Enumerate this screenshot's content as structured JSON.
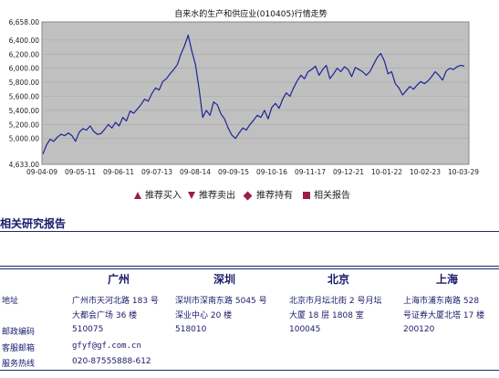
{
  "chart_data": {
    "type": "line",
    "title": "自来水的生产和供应业(010405)行情走势",
    "ylim": [
      4633,
      6658
    ],
    "y_ticks": [
      "4,633.00",
      "5,000.00",
      "5,200.00",
      "5,400.00",
      "5,600.00",
      "5,800.00",
      "6,000.00",
      "6,200.00",
      "6,400.00",
      "6,658.00"
    ],
    "x_ticks": [
      "09-04-09",
      "09-05-11",
      "09-06-11",
      "09-07-13",
      "09-08-14",
      "09-09-15",
      "09-10-16",
      "09-11-17",
      "09-12-21",
      "10-01-22",
      "10-02-23",
      "10-03-29"
    ],
    "line_color": "#1c2497",
    "series": [
      {
        "values": [
          4780,
          4910,
          4990,
          4960,
          5020,
          5060,
          5040,
          5080,
          5040,
          4960,
          5090,
          5140,
          5120,
          5180,
          5100,
          5060,
          5070,
          5130,
          5200,
          5150,
          5230,
          5180,
          5300,
          5250,
          5390,
          5360,
          5420,
          5480,
          5560,
          5530,
          5640,
          5720,
          5690,
          5810,
          5850,
          5920,
          5980,
          6050,
          6200,
          6320,
          6470,
          6240,
          6050,
          5700,
          5300,
          5400,
          5330,
          5520,
          5480,
          5350,
          5280,
          5150,
          5050,
          5000,
          5080,
          5150,
          5120,
          5200,
          5260,
          5330,
          5300,
          5400,
          5280,
          5440,
          5500,
          5430,
          5560,
          5650,
          5600,
          5720,
          5820,
          5900,
          5850,
          5950,
          5980,
          6030,
          5900,
          5980,
          6040,
          5850,
          5920,
          6000,
          5950,
          6020,
          5980,
          5880,
          6010,
          5980,
          5950,
          5900,
          5950,
          6050,
          6150,
          6210,
          6100,
          5920,
          5950,
          5780,
          5720,
          5620,
          5680,
          5740,
          5700,
          5760,
          5810,
          5780,
          5820,
          5880,
          5950,
          5900,
          5830,
          5960,
          6000,
          5980,
          6020,
          6040,
          6030
        ]
      }
    ]
  },
  "legend": [
    {
      "label": "推荐买入",
      "marker": "triangle-up"
    },
    {
      "label": "推荐卖出",
      "marker": "triangle-down"
    },
    {
      "label": "推荐持有",
      "marker": "diamond"
    },
    {
      "label": "相关报告",
      "marker": "square"
    }
  ],
  "colors": {
    "accent": "#9b1d50",
    "rule": "#1f2a6e",
    "plot_bg": "#c0c0c0"
  },
  "section_title": "相关研究报告",
  "contact": {
    "cities": [
      "广州",
      "深圳",
      "北京",
      "上海"
    ],
    "row_labels": [
      "地址",
      "邮政编码",
      "客服邮箱",
      "服务热线"
    ],
    "address": [
      [
        "广州市天河北路 183 号",
        "大都会广场 36 楼"
      ],
      [
        "深圳市深南东路 5045 号",
        "深业中心 20 楼"
      ],
      [
        "北京市月坛北街 2 号月坛",
        "大厦 18 层 1808 室"
      ],
      [
        "上海市浦东南路 528",
        "号证券大厦北塔 17 楼"
      ]
    ],
    "postcodes": [
      "510075",
      "518010",
      "100045",
      "200120"
    ],
    "email": "gfyf@gf.com.cn",
    "hotline": "020-87555888-612"
  }
}
